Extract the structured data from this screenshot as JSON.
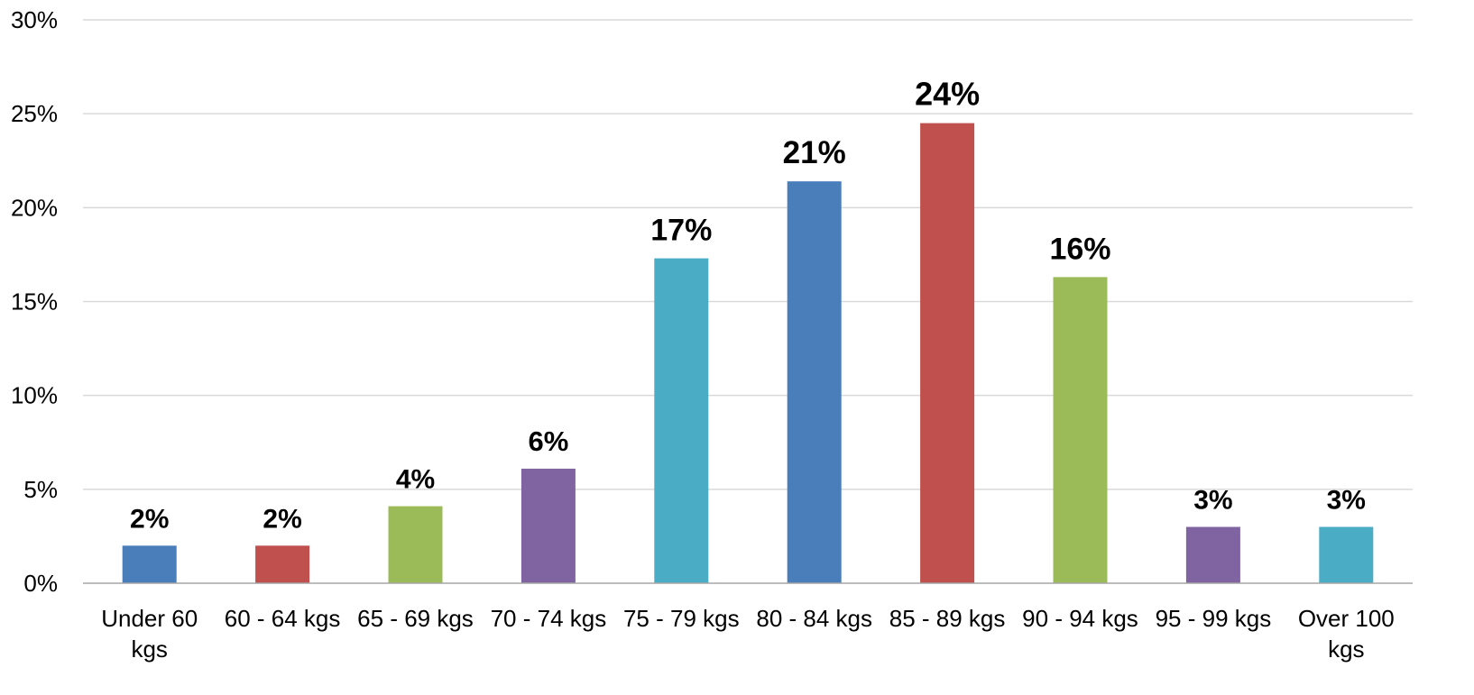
{
  "chart_data": {
    "type": "bar",
    "title": "",
    "xlabel": "",
    "ylabel": "",
    "categories": [
      "Under 60 kgs",
      "60 - 64 kgs",
      "65 - 69 kgs",
      "70 - 74 kgs",
      "75 - 79 kgs",
      "80 - 84 kgs",
      "85 - 89 kgs",
      "90 - 94 kgs",
      "95 - 99 kgs",
      "Over 100 kgs"
    ],
    "category_label_lines": [
      [
        "Under 60",
        "kgs"
      ],
      [
        "60 - 64 kgs"
      ],
      [
        "65 - 69 kgs"
      ],
      [
        "70 - 74 kgs"
      ],
      [
        "75 - 79 kgs"
      ],
      [
        "80 - 84 kgs"
      ],
      [
        "85 - 89 kgs"
      ],
      [
        "90 - 94 kgs"
      ],
      [
        "95 - 99 kgs"
      ],
      [
        "Over 100",
        "kgs"
      ]
    ],
    "values": [
      2.0,
      2.0,
      4.1,
      6.1,
      17.3,
      21.4,
      24.5,
      16.3,
      3.0,
      3.0
    ],
    "data_labels": [
      "2%",
      "2%",
      "4%",
      "6%",
      "17%",
      "21%",
      "24%",
      "16%",
      "3%",
      "3%"
    ],
    "colors": [
      "#4a7ebb",
      "#c0504d",
      "#9bbb59",
      "#8064a2",
      "#4bacc6",
      "#4a7ebb",
      "#c0504d",
      "#9bbb59",
      "#8064a2",
      "#4bacc6"
    ],
    "ylim": [
      0,
      30
    ],
    "yticks": [
      0,
      5,
      10,
      15,
      20,
      25,
      30
    ],
    "ytick_labels": [
      "0%",
      "5%",
      "10%",
      "15%",
      "20%",
      "25%",
      "30%"
    ],
    "grid": true,
    "legend": "none"
  }
}
